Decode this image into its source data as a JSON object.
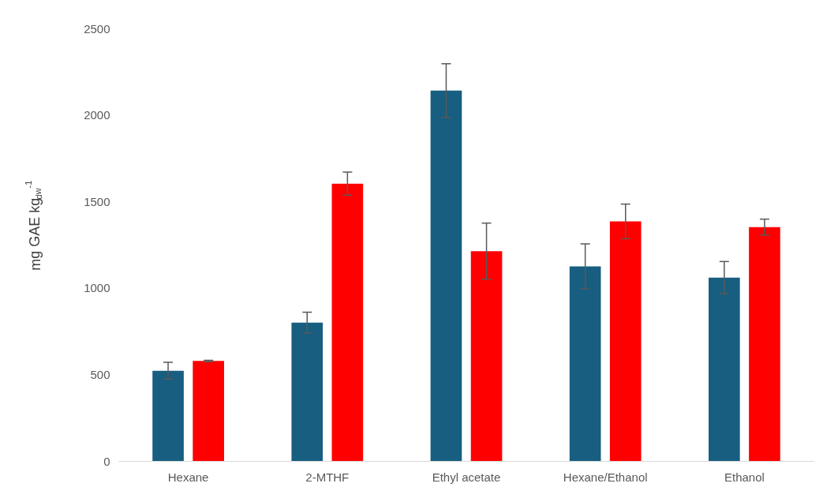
{
  "chart_data": {
    "type": "bar",
    "ylabel": "mg GAE kg$_{dw}$$^{-1}$",
    "categories": [
      "Hexane",
      "2-MTHF",
      "Ethyl acetate",
      "Hexane/Ethanol",
      "Ethanol"
    ],
    "series": [
      {
        "color": "#175e80",
        "values": [
          524,
          802,
          2143,
          1127,
          1062
        ],
        "errors": [
          48,
          60,
          155,
          130,
          93
        ]
      },
      {
        "color": "#ff0000",
        "values": [
          580,
          1605,
          1215,
          1387,
          1354
        ],
        "errors": [
          4,
          67,
          162,
          100,
          46
        ]
      }
    ],
    "ylim": [
      0,
      2500
    ],
    "yticks": [
      0,
      500,
      1000,
      1500,
      2000,
      2500
    ],
    "grid": false
  }
}
